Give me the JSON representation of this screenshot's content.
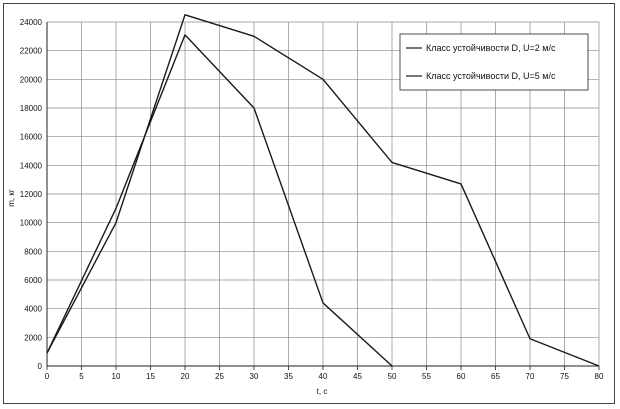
{
  "chart_data": {
    "type": "line",
    "title": "",
    "xlabel": "t, c",
    "ylabel": "m, кг",
    "xlim": [
      0,
      80
    ],
    "ylim": [
      0,
      24000
    ],
    "x_ticks": [
      0,
      5,
      10,
      15,
      20,
      25,
      30,
      35,
      40,
      45,
      50,
      55,
      60,
      65,
      70,
      75,
      80
    ],
    "y_ticks": [
      0,
      2000,
      4000,
      6000,
      8000,
      10000,
      12000,
      14000,
      16000,
      18000,
      20000,
      22000,
      24000
    ],
    "grid": true,
    "legend_position": "top-right",
    "series": [
      {
        "name": "Класс устойчивости D, U=2 м/с",
        "x": [
          0,
          10,
          20,
          30,
          40,
          50,
          60,
          70,
          80
        ],
        "y": [
          900,
          10000,
          24500,
          23000,
          20000,
          14200,
          12700,
          1900,
          0
        ],
        "color": "#1a1a1a"
      },
      {
        "name": "Класс устойчивости D, U=5 м/с",
        "x": [
          0,
          10,
          20,
          30,
          40,
          50
        ],
        "y": [
          900,
          11000,
          23100,
          18000,
          4400,
          0
        ],
        "color": "#1a1a1a"
      }
    ]
  }
}
